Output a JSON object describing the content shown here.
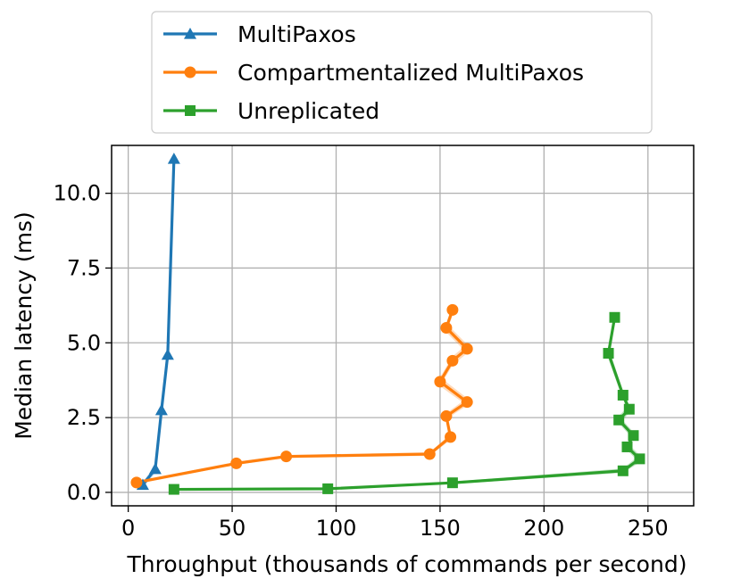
{
  "chart_data": {
    "type": "line",
    "xlabel": "Throughput (thousands of commands per second)",
    "ylabel": "Median latency (ms)",
    "xlim": [
      -8,
      272
    ],
    "ylim": [
      -0.45,
      11.6
    ],
    "xticks": [
      0,
      50,
      100,
      150,
      200,
      250
    ],
    "xtick_labels": [
      "0",
      "50",
      "100",
      "150",
      "200",
      "250"
    ],
    "yticks": [
      0.0,
      2.5,
      5.0,
      7.5,
      10.0
    ],
    "ytick_labels": [
      "0.0",
      "2.5",
      "5.0",
      "7.5",
      "10.0"
    ],
    "grid": true,
    "legend_position": "top-center",
    "series": [
      {
        "name": "MultiPaxos",
        "color": "#1f77b4",
        "marker": "triangle",
        "x": [
          7,
          13,
          16,
          19,
          22
        ],
        "y": [
          0.25,
          0.78,
          2.75,
          4.6,
          11.15
        ],
        "band_low": [
          0.15,
          0.65,
          2.6,
          4.45,
          11.0
        ],
        "band_high": [
          0.35,
          0.9,
          2.9,
          4.75,
          11.3
        ]
      },
      {
        "name": "Compartmentalized MultiPaxos",
        "color": "#ff7f0e",
        "marker": "circle",
        "x": [
          4,
          52,
          76,
          145,
          155,
          153,
          163,
          150,
          156,
          163,
          153,
          156
        ],
        "y": [
          0.33,
          0.97,
          1.2,
          1.28,
          1.85,
          2.55,
          3.02,
          3.7,
          4.4,
          4.8,
          5.5,
          6.1
        ],
        "band_low": [
          0.28,
          0.92,
          1.15,
          1.22,
          1.75,
          2.45,
          2.9,
          3.55,
          4.25,
          4.65,
          5.35,
          5.9
        ],
        "band_high": [
          0.38,
          1.02,
          1.25,
          1.34,
          1.95,
          2.65,
          3.15,
          3.85,
          4.55,
          4.95,
          5.65,
          6.3
        ]
      },
      {
        "name": "Unreplicated",
        "color": "#2ca02c",
        "marker": "square",
        "x": [
          22,
          96,
          156,
          238,
          246,
          240,
          243,
          236,
          241,
          238,
          231,
          234
        ],
        "y": [
          0.1,
          0.12,
          0.32,
          0.72,
          1.12,
          1.52,
          1.9,
          2.42,
          2.78,
          3.25,
          4.65,
          5.85
        ],
        "band_low": [
          0.08,
          0.1,
          0.28,
          0.65,
          1.0,
          1.4,
          1.78,
          2.3,
          2.65,
          3.1,
          4.45,
          5.65
        ],
        "band_high": [
          0.12,
          0.14,
          0.36,
          0.8,
          1.25,
          1.65,
          2.02,
          2.55,
          2.92,
          3.4,
          4.85,
          6.05
        ]
      }
    ]
  }
}
